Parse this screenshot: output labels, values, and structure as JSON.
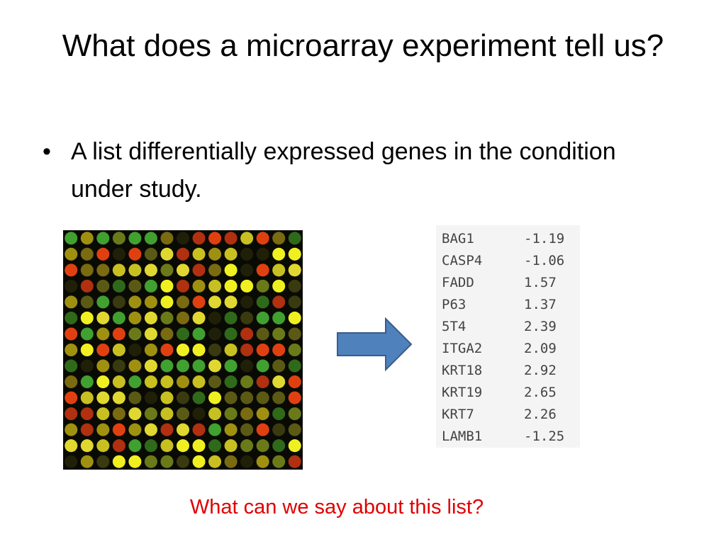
{
  "title": "What does a microarray experiment tell us?",
  "bullets": [
    "A list differentially expressed genes in the condition under study."
  ],
  "table": {
    "rows": [
      [
        "BAG1",
        -1.19
      ],
      [
        "CASP4",
        -1.06
      ],
      [
        "FADD",
        1.57
      ],
      [
        "P63",
        1.37
      ],
      [
        "5T4",
        2.39
      ],
      [
        "ITGA2",
        2.09
      ],
      [
        "KRT18",
        2.92
      ],
      [
        "KRT19",
        2.65
      ],
      [
        "KRT7",
        2.26
      ],
      [
        "LAMB1",
        -1.25
      ]
    ]
  },
  "question": "What can we say about this list?"
}
